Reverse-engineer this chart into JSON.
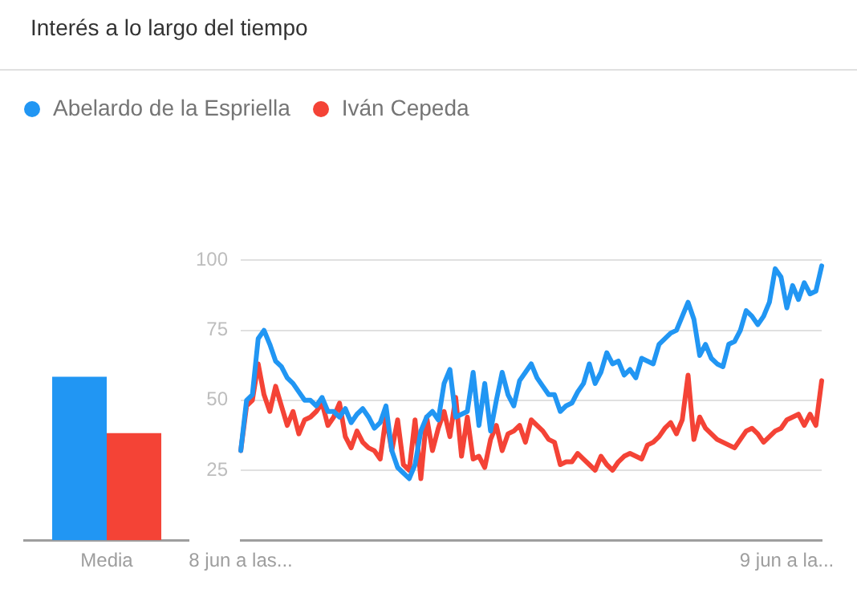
{
  "chart_data": [
    {
      "type": "bar",
      "title": "Interés a lo largo del tiempo",
      "legend": "top",
      "categories": [
        "Media"
      ],
      "ylim": [
        0,
        100
      ],
      "tick_labels": "x",
      "series": [
        {
          "name": "Abelardo de la Espriella",
          "color": "#2196f3",
          "values": [
            58
          ]
        },
        {
          "name": "Iván Cepeda",
          "color": "#f44336",
          "values": [
            38
          ]
        }
      ]
    },
    {
      "type": "line",
      "grid": "y",
      "ylim": [
        0,
        100
      ],
      "yticks": [
        25,
        50,
        75,
        100
      ],
      "categories": [
        "8 jun a las...",
        null,
        null,
        null,
        null,
        null,
        null,
        null,
        null,
        null,
        null,
        null,
        null,
        null,
        null,
        null,
        null,
        null,
        null,
        null,
        null,
        null,
        null,
        null,
        null,
        null,
        null,
        null,
        null,
        null,
        null,
        null,
        null,
        null,
        null,
        null,
        null,
        null,
        null,
        null,
        null,
        null,
        null,
        null,
        null,
        null,
        null,
        null,
        null,
        null,
        null,
        null,
        null,
        null,
        null,
        null,
        null,
        null,
        null,
        null,
        null,
        null,
        null,
        null,
        null,
        null,
        null,
        null,
        null,
        null,
        null,
        null,
        null,
        null,
        null,
        null,
        null,
        null,
        null,
        null,
        null,
        null,
        null,
        null,
        null,
        null,
        null,
        null,
        null,
        null,
        null,
        null,
        null,
        null,
        "9 jun a la...",
        null,
        null,
        null,
        null,
        null,
        null
      ],
      "series": [
        {
          "color": "#2196f3",
          "values": [
            32,
            50,
            52,
            72,
            75,
            70,
            64,
            62,
            58,
            56,
            53,
            50,
            50,
            48,
            51,
            46,
            46,
            44,
            47,
            42,
            45,
            47,
            44,
            40,
            42,
            48,
            32,
            26,
            24,
            22,
            27,
            39,
            44,
            46,
            43,
            56,
            61,
            44,
            45,
            46,
            60,
            41,
            56,
            39,
            50,
            60,
            52,
            48,
            57,
            60,
            63,
            58,
            55,
            52,
            52,
            46,
            48,
            49,
            53,
            56,
            63,
            56,
            60,
            67,
            63,
            64,
            59,
            61,
            58,
            65,
            64,
            63,
            70,
            72,
            74,
            75,
            80,
            85,
            79,
            66,
            70,
            65,
            63,
            62,
            70,
            71,
            75,
            82,
            80,
            77,
            80,
            85,
            97,
            94,
            83,
            91,
            86,
            92,
            88,
            89,
            98
          ]
        },
        {
          "color": "#f44336",
          "values": [
            32,
            48,
            50,
            63,
            52,
            46,
            55,
            48,
            41,
            46,
            38,
            43,
            44,
            46,
            49,
            41,
            44,
            49,
            37,
            33,
            39,
            35,
            33,
            32,
            29,
            44,
            32,
            43,
            27,
            25,
            43,
            22,
            44,
            32,
            40,
            46,
            37,
            51,
            30,
            44,
            29,
            30,
            26,
            36,
            41,
            32,
            38,
            39,
            41,
            35,
            43,
            41,
            39,
            36,
            35,
            27,
            28,
            28,
            31,
            29,
            27,
            25,
            30,
            27,
            25,
            28,
            30,
            31,
            30,
            29,
            34,
            35,
            37,
            40,
            42,
            38,
            43,
            59,
            36,
            44,
            40,
            38,
            36,
            35,
            34,
            33,
            36,
            39,
            40,
            38,
            35,
            37,
            39,
            40,
            43,
            44,
            45,
            41,
            45,
            41,
            57
          ]
        }
      ]
    }
  ]
}
